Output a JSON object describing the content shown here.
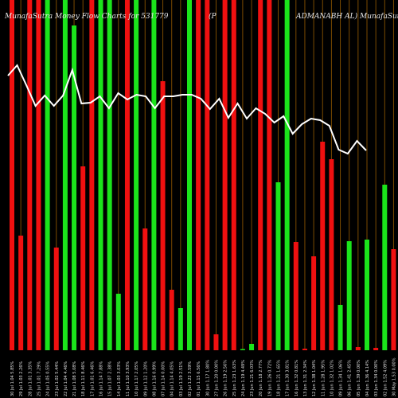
{
  "chart_data": {
    "type": "bar",
    "title_left": "MunafaSutra  Money Flow  Charts for 531779",
    "title_mid": "(P",
    "title_right": "ADMANABH AL) MunafaSutra.com",
    "ylim": [
      0,
      440
    ],
    "grid": "vertical lines",
    "categories": [
      "30 Jul 1.04 5.85%",
      "29 Jul 1.03 2.26%",
      "28 Jul 1.01 3.35%",
      "25 Jul 1.01 7.29%",
      "24 Jul 1.05 0.55%",
      "23 Jul 1.02 5.44%",
      "22 Jul 1.04 4.46%",
      "21 Jul 1.08 5.08%",
      "18 Jul 1.11 8.46%",
      "17 Jul 1.01 6.46%",
      "16 Jul 1.14 7.88%",
      "15 Jul 1.07 2.38%",
      "14 Jul 1.03 3.03%",
      "11 Jul 1.10 3.93%",
      "10 Jul 1.17 2.05%",
      "09 Jul 1.12 1.20%",
      "08 Jul 1.16 0.99%",
      "07 Jul 1.14 0.00%",
      "04 Jul 1.14 4.05%",
      "03 Jul 1.19 2.51%",
      "02 Jul 1.22 3.59%",
      "01 Jul 1.15 6.56%",
      "30 Jun 1.17 1.80%",
      "27 Jun 1.20 0.00%",
      "26 Jun 1.19 2.56%",
      "25 Jun 1.23 1.63%",
      "24 Jun 1.19 4.49%",
      "23 Jun 1.21 6.03%",
      "20 Jun 1.18 2.77%",
      "19 Jun 1.26 0.72%",
      "18 Jun 1.21 1.65%",
      "17 Jun 1.30 3.81%",
      "16 Jun 1.32 0.81%",
      "13 Jun 1.31 2.34%",
      "12 Jun 1.38 1.04%",
      "11 Jun 1.28 1.95%",
      "10 Jun 1.32 1.02%",
      "09 Jun 1.34 1.06%",
      "06 Jun 1.41 2.45%",
      "05 Jun 1.39 0.00%",
      "04 Jun 1.36 4.14%",
      "03 Jun 1.34 0.00%",
      "02 Jun 1.52 4.09%",
      "30 May 1.53 0.00%",
      "29 May 1.51 1.86%"
    ],
    "series": [
      {
        "values": [
          440,
          144,
          440,
          440,
          440,
          129,
          440,
          408,
          231,
          440,
          440,
          440,
          71,
          440,
          440,
          153,
          440,
          338,
          76,
          53,
          440,
          440,
          440,
          20,
          440,
          440,
          1,
          8,
          440,
          440,
          211,
          440,
          136,
          2,
          118,
          262,
          240,
          57,
          137,
          4,
          139,
          3,
          208,
          127,
          22
        ],
        "colors": [
          "red",
          "red",
          "red",
          "red",
          "green",
          "red",
          "green",
          "green",
          "red",
          "red",
          "green",
          "green",
          "green",
          "red",
          "green",
          "red",
          "green",
          "red",
          "red",
          "green",
          "green",
          "red",
          "red",
          "red",
          "red",
          "red",
          "green",
          "green",
          "red",
          "red",
          "green",
          "green",
          "red",
          "red",
          "red",
          "red",
          "red",
          "green",
          "green",
          "red",
          "green",
          "red",
          "green",
          "red",
          "green"
        ]
      }
    ],
    "line": [
      95,
      82,
      107,
      133,
      120,
      133,
      120,
      88,
      130,
      129,
      121,
      136,
      117,
      125,
      119,
      121,
      136,
      121,
      121,
      119,
      119,
      124,
      137,
      124,
      148,
      130,
      149,
      136,
      143,
      154,
      146,
      168,
      156,
      149,
      151,
      158,
      188,
      193,
      177,
      189
    ]
  },
  "colors": {
    "background": "#000000",
    "green": "#1be41b",
    "red": "#f01010",
    "gridline": "#7a4a00",
    "line": "#ffffff",
    "text": "#e6e6e6"
  }
}
